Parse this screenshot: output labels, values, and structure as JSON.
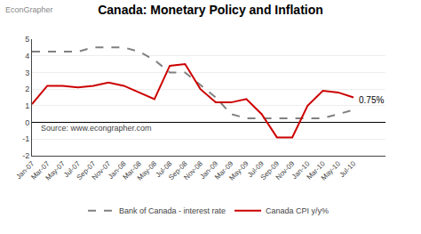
{
  "chart_data": {
    "type": "line",
    "title": "Canada: Monetary Policy and Inflation",
    "categories": [
      "Jan-07",
      "Mar-07",
      "May-07",
      "Jul-07",
      "Sep-07",
      "Nov-07",
      "Jan-08",
      "Mar-08",
      "May-08",
      "Jul-08",
      "Sep-08",
      "Nov-08",
      "Jan-09",
      "Mar-09",
      "May-09",
      "Jul-09",
      "Sep-09",
      "Nov-09",
      "Jan-10",
      "Mar-10",
      "May-10",
      "Jul-10"
    ],
    "series": [
      {
        "name": "Bank of Canada - interest rate",
        "color": "#808080",
        "line_style": "dashed",
        "values": [
          4.25,
          4.25,
          4.25,
          4.25,
          4.5,
          4.5,
          4.5,
          4.25,
          3.75,
          3.0,
          3.0,
          2.25,
          1.5,
          0.5,
          0.25,
          0.25,
          0.25,
          0.25,
          0.25,
          0.25,
          0.5,
          0.75
        ]
      },
      {
        "name": "Canada CPI y/y%",
        "color": "#cc0000",
        "line_style": "solid",
        "values": [
          1.1,
          2.2,
          2.2,
          2.1,
          2.2,
          2.4,
          2.2,
          1.8,
          1.4,
          3.4,
          3.5,
          2.0,
          1.2,
          1.2,
          1.4,
          0.5,
          -0.9,
          -0.9,
          1.0,
          1.9,
          1.8,
          1.5
        ]
      }
    ],
    "annotations": [
      {
        "text": "0.75%",
        "x": "Jul-10",
        "y": 0.75
      }
    ],
    "source": "Source: www.econgrapher.com",
    "watermark": "EconGrapher",
    "ylim": [
      -2,
      5
    ],
    "yticks": [
      -2,
      -1,
      0,
      1,
      2,
      3,
      4,
      5
    ],
    "grid": true,
    "legend": "bottom"
  }
}
